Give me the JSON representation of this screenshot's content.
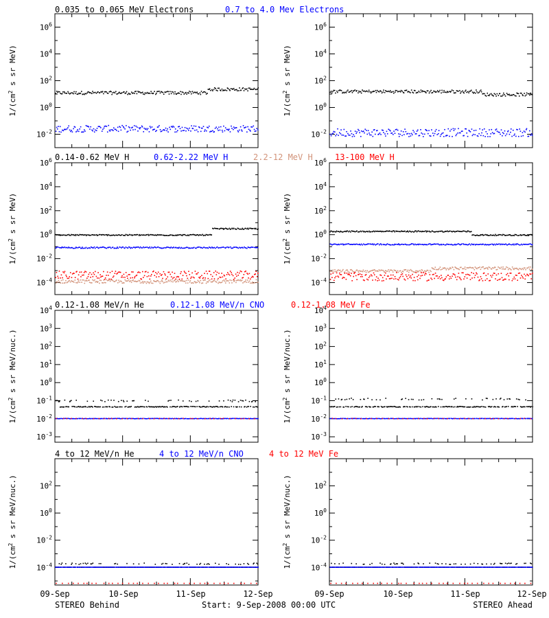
{
  "chart_data": [
    {
      "type": "scatter",
      "id": "electrons-behind",
      "log_y": true,
      "ylim": [
        0.001,
        10000000
      ],
      "yticks": [
        {
          "v": 1000000,
          "b": "10",
          "e": "6"
        },
        {
          "v": 10000,
          "b": "10",
          "e": "4"
        },
        {
          "v": 100,
          "b": "10",
          "e": "2"
        },
        {
          "v": 1,
          "b": "10",
          "e": "0"
        },
        {
          "v": 0.01,
          "b": "10",
          "e": "-2"
        }
      ],
      "ylabel": {
        "pre": "1/(cm",
        "sup": "2",
        "post": " s sr MeV)"
      },
      "series": [
        {
          "name": "0.035 to 0.065 MeV Electrons",
          "color": "#000000",
          "level": 12,
          "spread": 0.12,
          "bump_at": 0.8,
          "bump_level": 22
        },
        {
          "name": "0.7 to 4.0 Mev Electrons",
          "color": "#0000ff",
          "level": 0.025,
          "spread": 0.25
        }
      ]
    },
    {
      "type": "scatter",
      "id": "electrons-ahead",
      "log_y": true,
      "ylim": [
        0.001,
        10000000
      ],
      "yticks": [
        {
          "v": 1000000,
          "b": "10",
          "e": "6"
        },
        {
          "v": 10000,
          "b": "10",
          "e": "4"
        },
        {
          "v": 100,
          "b": "10",
          "e": "2"
        },
        {
          "v": 1,
          "b": "10",
          "e": "0"
        },
        {
          "v": 0.01,
          "b": "10",
          "e": "-2"
        }
      ],
      "ylabel": {
        "pre": "1/(cm",
        "sup": "2",
        "post": " s sr MeV)"
      },
      "series": [
        {
          "name": "",
          "color": "#000000",
          "level": 15,
          "spread": 0.12,
          "dip_at": 0.85,
          "dip_level": 9
        },
        {
          "name": "",
          "color": "#0000ff",
          "level": 0.013,
          "spread": 0.3
        }
      ]
    },
    {
      "type": "scatter",
      "id": "protons-behind",
      "log_y": true,
      "ylim": [
        1e-05,
        1000000
      ],
      "yticks": [
        {
          "v": 1000000,
          "b": "10",
          "e": "6"
        },
        {
          "v": 10000,
          "b": "10",
          "e": "4"
        },
        {
          "v": 100,
          "b": "10",
          "e": "2"
        },
        {
          "v": 1,
          "b": "10",
          "e": "0"
        },
        {
          "v": 0.01,
          "b": "10",
          "e": "-2"
        },
        {
          "v": 0.0001,
          "b": "10",
          "e": "-4"
        }
      ],
      "ylabel": {
        "pre": "1/(cm",
        "sup": "2",
        "post": " s sr MeV)"
      },
      "series": [
        {
          "name": "0.14-0.62 MeV H",
          "color": "#000000",
          "level": 0.9,
          "spread": 0.05,
          "bump_at": 0.82,
          "bump_level": 3
        },
        {
          "name": "0.62-2.22 MeV H",
          "color": "#0000ff",
          "level": 0.08,
          "spread": 0.06
        },
        {
          "name": "2.2-12 MeV H",
          "color": "#d2937a",
          "level": 0.00012,
          "spread": 0.15
        },
        {
          "name": "13-100 MeV H",
          "color": "#ff0000",
          "level": 0.0004,
          "spread": 0.35
        }
      ]
    },
    {
      "type": "scatter",
      "id": "protons-ahead",
      "log_y": true,
      "ylim": [
        1e-05,
        1000000
      ],
      "yticks": [
        {
          "v": 1000000,
          "b": "10",
          "e": "6"
        },
        {
          "v": 10000,
          "b": "10",
          "e": "4"
        },
        {
          "v": 100,
          "b": "10",
          "e": "2"
        },
        {
          "v": 1,
          "b": "10",
          "e": "0"
        },
        {
          "v": 0.01,
          "b": "10",
          "e": "-2"
        },
        {
          "v": 0.0001,
          "b": "10",
          "e": "-4"
        }
      ],
      "ylabel": {
        "pre": "1/(cm",
        "sup": "2",
        "post": " s sr MeV)"
      },
      "series": [
        {
          "name": "",
          "color": "#000000",
          "level": 1.8,
          "spread": 0.05,
          "dip_at": 0.8,
          "dip_level": 0.9
        },
        {
          "name": "",
          "color": "#0000ff",
          "level": 0.15,
          "spread": 0.05
        },
        {
          "name": "",
          "color": "#d2937a",
          "level": 0.0009,
          "spread": 0.12,
          "bump_at": 0.55,
          "bump_level": 0.0015
        },
        {
          "name": "",
          "color": "#ff0000",
          "level": 0.0003,
          "spread": 0.35
        }
      ]
    },
    {
      "type": "scatter",
      "id": "heavy-low-behind",
      "log_y": true,
      "ylim": [
        0.0005,
        10000
      ],
      "yticks": [
        {
          "v": 10000,
          "b": "10",
          "e": "4"
        },
        {
          "v": 1000,
          "b": "10",
          "e": "3"
        },
        {
          "v": 100,
          "b": "10",
          "e": "2"
        },
        {
          "v": 10,
          "b": "10",
          "e": "1"
        },
        {
          "v": 1,
          "b": "10",
          "e": "0"
        },
        {
          "v": 0.1,
          "b": "10",
          "e": "-1"
        },
        {
          "v": 0.01,
          "b": "10",
          "e": "-2"
        },
        {
          "v": 0.001,
          "b": "10",
          "e": "-3"
        }
      ],
      "ylabel": {
        "pre": "1/(cm",
        "sup": "2",
        "post": " s sr MeV/nuc.)"
      },
      "series": [
        {
          "name": "0.12-1.08 MeV/n He",
          "color": "#000000",
          "level": 0.045,
          "spread": 0.02,
          "upper": 0.095
        },
        {
          "name": "0.12-1.08 MeV/n CNO",
          "color": "#0000ff",
          "level": 0.01,
          "spread": 0.01
        },
        {
          "name": "0.12-1.08 MeV Fe",
          "color": "#ff0000",
          "level": 0.01,
          "spread": 0.01,
          "sparse": true
        }
      ]
    },
    {
      "type": "scatter",
      "id": "heavy-low-ahead",
      "log_y": true,
      "ylim": [
        0.0005,
        10000
      ],
      "yticks": [
        {
          "v": 10000,
          "b": "10",
          "e": "4"
        },
        {
          "v": 1000,
          "b": "10",
          "e": "3"
        },
        {
          "v": 100,
          "b": "10",
          "e": "2"
        },
        {
          "v": 10,
          "b": "10",
          "e": "1"
        },
        {
          "v": 1,
          "b": "10",
          "e": "0"
        },
        {
          "v": 0.1,
          "b": "10",
          "e": "-1"
        },
        {
          "v": 0.01,
          "b": "10",
          "e": "-2"
        },
        {
          "v": 0.001,
          "b": "10",
          "e": "-3"
        }
      ],
      "ylabel": {
        "pre": "1/(cm",
        "sup": "2",
        "post": " s sr MeV/nuc.)"
      },
      "series": [
        {
          "name": "",
          "color": "#000000",
          "level": 0.045,
          "spread": 0.02,
          "upper": 0.12
        },
        {
          "name": "",
          "color": "#0000ff",
          "level": 0.01,
          "spread": 0.01
        },
        {
          "name": "",
          "color": "#ff0000",
          "level": 0.01,
          "spread": 0.01,
          "sparse": true
        }
      ]
    },
    {
      "type": "scatter",
      "id": "heavy-high-behind",
      "log_y": true,
      "ylim": [
        5e-06,
        10000
      ],
      "yticks": [
        {
          "v": 100,
          "b": "10",
          "e": "2"
        },
        {
          "v": 1,
          "b": "10",
          "e": "0"
        },
        {
          "v": 0.01,
          "b": "10",
          "e": "-2"
        },
        {
          "v": 0.0001,
          "b": "10",
          "e": "-4"
        }
      ],
      "ylabel": {
        "pre": "1/(cm",
        "sup": "2",
        "post": " s sr MeV/nuc.)"
      },
      "series": [
        {
          "name": "4 to 12 MeV/n He",
          "color": "#000000",
          "level": 0.0001,
          "spread": 0.0,
          "upper": 0.00018
        },
        {
          "name": "4 to 12 MeV/n CNO",
          "color": "#0000ff",
          "level": 0.0001,
          "spread": 0.0
        },
        {
          "name": "4 to 12 MeV Fe",
          "color": "#ff0000",
          "level": 6.5e-06,
          "spread": 0.0,
          "sparse": true
        }
      ]
    },
    {
      "type": "scatter",
      "id": "heavy-high-ahead",
      "log_y": true,
      "ylim": [
        5e-06,
        10000
      ],
      "yticks": [
        {
          "v": 100,
          "b": "10",
          "e": "2"
        },
        {
          "v": 1,
          "b": "10",
          "e": "0"
        },
        {
          "v": 0.01,
          "b": "10",
          "e": "-2"
        },
        {
          "v": 0.0001,
          "b": "10",
          "e": "-4"
        }
      ],
      "ylabel": {
        "pre": "1/(cm",
        "sup": "2",
        "post": " s sr MeV/nuc.)"
      },
      "series": [
        {
          "name": "",
          "color": "#000000",
          "level": 0.0001,
          "spread": 0.0,
          "upper": 0.00018
        },
        {
          "name": "",
          "color": "#0000ff",
          "level": 0.0001,
          "spread": 0.0
        },
        {
          "name": "",
          "color": "#ff0000",
          "level": 6.5e-06,
          "spread": 0.0,
          "sparse": true
        }
      ]
    }
  ],
  "x_axis": {
    "range_days": [
      0,
      3
    ],
    "ticks": [
      "09-Sep",
      "10-Sep",
      "11-Sep",
      "12-Sep"
    ]
  },
  "footer": {
    "left": "STEREO Behind",
    "center": "Start:  9-Sep-2008 00:00 UTC",
    "right": "STEREO Ahead"
  }
}
